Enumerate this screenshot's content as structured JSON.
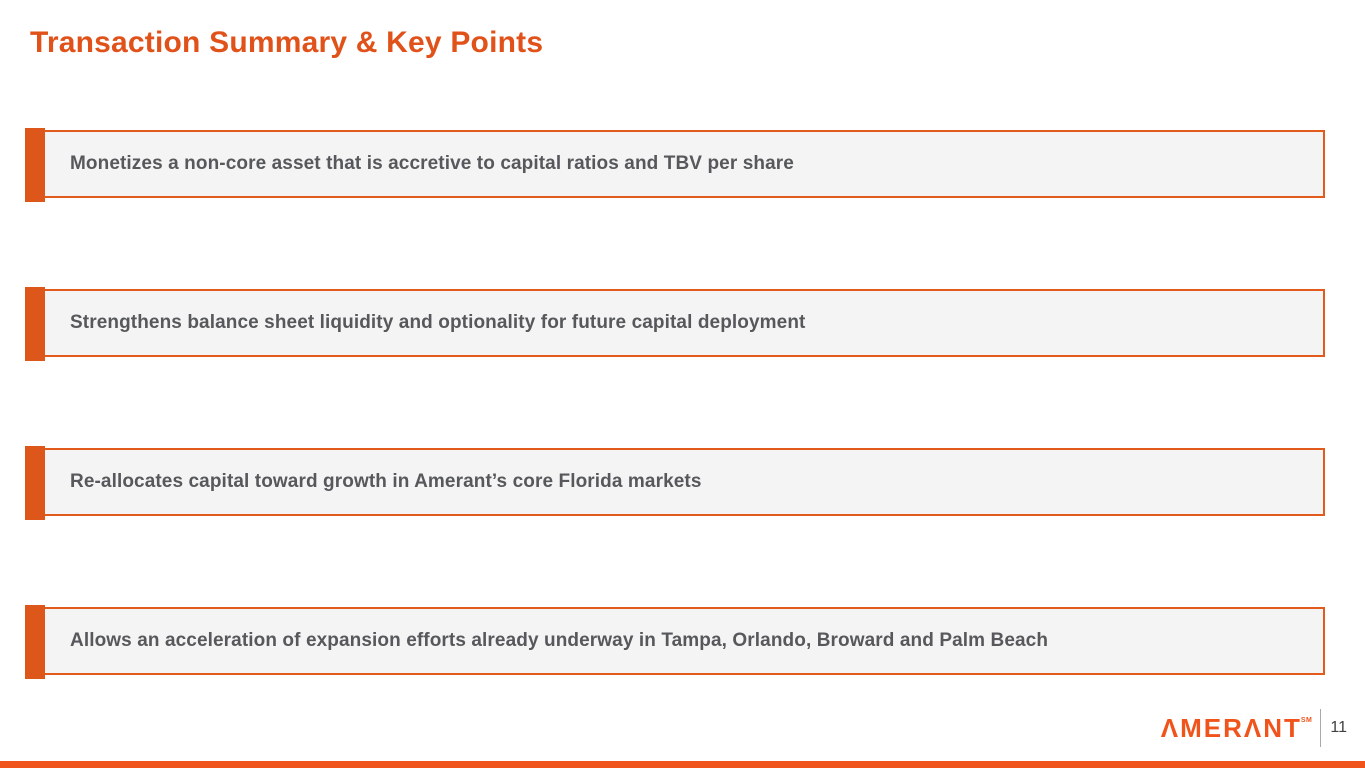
{
  "slide": {
    "title": "Transaction Summary & Key Points",
    "key_points": [
      {
        "text": "Monetizes a non-core asset that is accretive to capital ratios and TBV per share"
      },
      {
        "text": "Strengthens balance sheet liquidity and optionality for future capital deployment"
      },
      {
        "text": "Re-allocates capital toward growth in Amerant’s core Florida markets"
      },
      {
        "text": "Allows an acceleration of expansion efforts already underway in Tampa, Orlando, Broward and Palm Beach"
      }
    ],
    "footer": {
      "logo_text": "ΛMERΛNT",
      "logo_mark": "SM",
      "page_number": "11"
    },
    "colors": {
      "title_orange": "#E0521A",
      "accent_orange": "#DC5719",
      "border_orange": "#E25A1C",
      "logo_orange": "#F0541C",
      "box_background": "#F4F4F4",
      "text_gray": "#57585B"
    }
  }
}
